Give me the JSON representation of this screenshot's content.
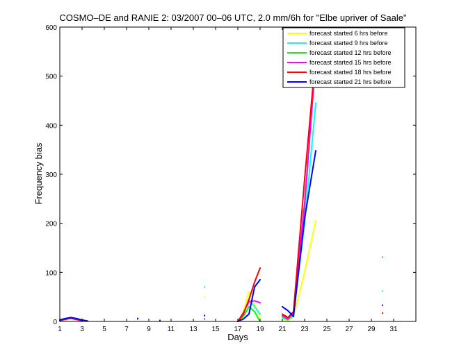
{
  "chart_data": {
    "type": "line",
    "title": "COSMO–DE and RANIE 2: 03/2007 00–06 UTC, 2.0 mm/6h for \"Elbe upriver of Saale\"",
    "xlabel": "Days",
    "ylabel": "Frequency bias",
    "xlim": [
      1,
      33
    ],
    "ylim": [
      0,
      600
    ],
    "xticks": [
      1,
      3,
      5,
      7,
      9,
      11,
      13,
      15,
      17,
      19,
      21,
      23,
      25,
      27,
      29,
      31
    ],
    "xtick_labels": [
      "1",
      "3",
      "5",
      "7",
      "9",
      "11",
      "13",
      "15",
      "17",
      "19",
      "21",
      "23",
      "25",
      "27",
      "29",
      "31"
    ],
    "yticks": [
      0,
      100,
      200,
      300,
      400,
      500,
      600
    ],
    "ytick_labels": [
      "0",
      "100",
      "200",
      "300",
      "400",
      "500",
      "600"
    ],
    "grid": false,
    "legend_position": "top-right",
    "series": [
      {
        "name": "forecast started 6 hrs before",
        "color": "#ffff00",
        "segments": [
          [
            [
              1,
              2
            ],
            [
              1.5,
              4
            ],
            [
              2,
              6
            ],
            [
              2.5,
              4
            ],
            [
              3,
              2
            ],
            [
              3.5,
              1
            ]
          ],
          [
            [
              17,
              0
            ],
            [
              17.5,
              20
            ],
            [
              18,
              60
            ],
            [
              18.5,
              35
            ],
            [
              19,
              10
            ]
          ],
          [
            [
              21,
              5
            ],
            [
              21.5,
              2
            ],
            [
              22,
              10
            ],
            [
              23,
              100
            ],
            [
              24,
              205
            ]
          ]
        ],
        "points": [
          [
            14,
            50
          ]
        ]
      },
      {
        "name": "forecast started 9 hrs before",
        "color": "#00ffff",
        "segments": [
          [
            [
              1,
              3
            ],
            [
              1.5,
              5
            ],
            [
              2,
              7
            ],
            [
              2.5,
              5
            ],
            [
              3,
              2
            ]
          ],
          [
            [
              17,
              0
            ],
            [
              17.5,
              15
            ],
            [
              18,
              45
            ],
            [
              18.5,
              30
            ],
            [
              19,
              15
            ]
          ],
          [
            [
              21,
              8
            ],
            [
              21.5,
              3
            ],
            [
              22,
              12
            ],
            [
              23,
              200
            ],
            [
              24,
              445
            ]
          ]
        ],
        "points": [
          [
            14,
            70
          ],
          [
            30,
            62
          ]
        ]
      },
      {
        "name": "forecast started 12 hrs before",
        "color": "#00ff00",
        "segments": [
          [
            [
              1,
              3
            ],
            [
              1.5,
              6
            ],
            [
              2,
              8
            ],
            [
              2.5,
              5
            ],
            [
              3,
              2
            ]
          ],
          [
            [
              17,
              0
            ],
            [
              17.5,
              10
            ],
            [
              18,
              30
            ],
            [
              18.5,
              20
            ],
            [
              19,
              0
            ]
          ],
          [
            [
              21,
              10
            ],
            [
              21.5,
              4
            ],
            [
              22,
              15
            ],
            [
              23,
              230
            ],
            [
              24,
              545
            ]
          ]
        ],
        "points": [
          [
            30,
            131
          ]
        ]
      },
      {
        "name": "forecast started 15 hrs before",
        "color": "#ff00ff",
        "segments": [
          [
            [
              1,
              2
            ],
            [
              1.5,
              5
            ],
            [
              2,
              6
            ],
            [
              2.5,
              4
            ],
            [
              3,
              1
            ]
          ],
          [
            [
              17,
              0
            ],
            [
              17.5,
              18
            ],
            [
              18,
              40
            ],
            [
              18.5,
              42
            ],
            [
              19,
              38
            ]
          ],
          [
            [
              21,
              12
            ],
            [
              21.5,
              5
            ],
            [
              22,
              18
            ],
            [
              23,
              240
            ],
            [
              24,
              535
            ]
          ]
        ],
        "points": [
          [
            14,
            5
          ]
        ]
      },
      {
        "name": "forecast started 18 hrs before",
        "color": "#ff0000",
        "segments": [
          [
            [
              1,
              2
            ],
            [
              1.5,
              4
            ],
            [
              2,
              7
            ],
            [
              2.5,
              4
            ],
            [
              3,
              2
            ]
          ],
          [
            [
              17,
              0
            ],
            [
              17.5,
              15
            ],
            [
              18,
              45
            ],
            [
              18.5,
              80
            ],
            [
              19,
              109
            ]
          ],
          [
            [
              21,
              15
            ],
            [
              21.5,
              8
            ],
            [
              22,
              20
            ],
            [
              23,
              290
            ],
            [
              24,
              543
            ]
          ]
        ],
        "points": [
          [
            8,
            5
          ],
          [
            30,
            17
          ]
        ]
      },
      {
        "name": "forecast started 21 hrs before",
        "color": "#0000ff",
        "segments": [
          [
            [
              1,
              3
            ],
            [
              1.5,
              6
            ],
            [
              2,
              8
            ],
            [
              2.5,
              6
            ],
            [
              3,
              3
            ],
            [
              3.5,
              1
            ]
          ],
          [
            [
              17,
              0
            ],
            [
              17.5,
              5
            ],
            [
              18,
              15
            ],
            [
              18.5,
              70
            ],
            [
              19,
              85
            ]
          ],
          [
            [
              21,
              30
            ],
            [
              21.5,
              22
            ],
            [
              22,
              10
            ],
            [
              23,
              210
            ],
            [
              24,
              348
            ]
          ]
        ],
        "points": [
          [
            8,
            6
          ],
          [
            10,
            2
          ],
          [
            14,
            12
          ],
          [
            30,
            33
          ]
        ]
      }
    ]
  }
}
